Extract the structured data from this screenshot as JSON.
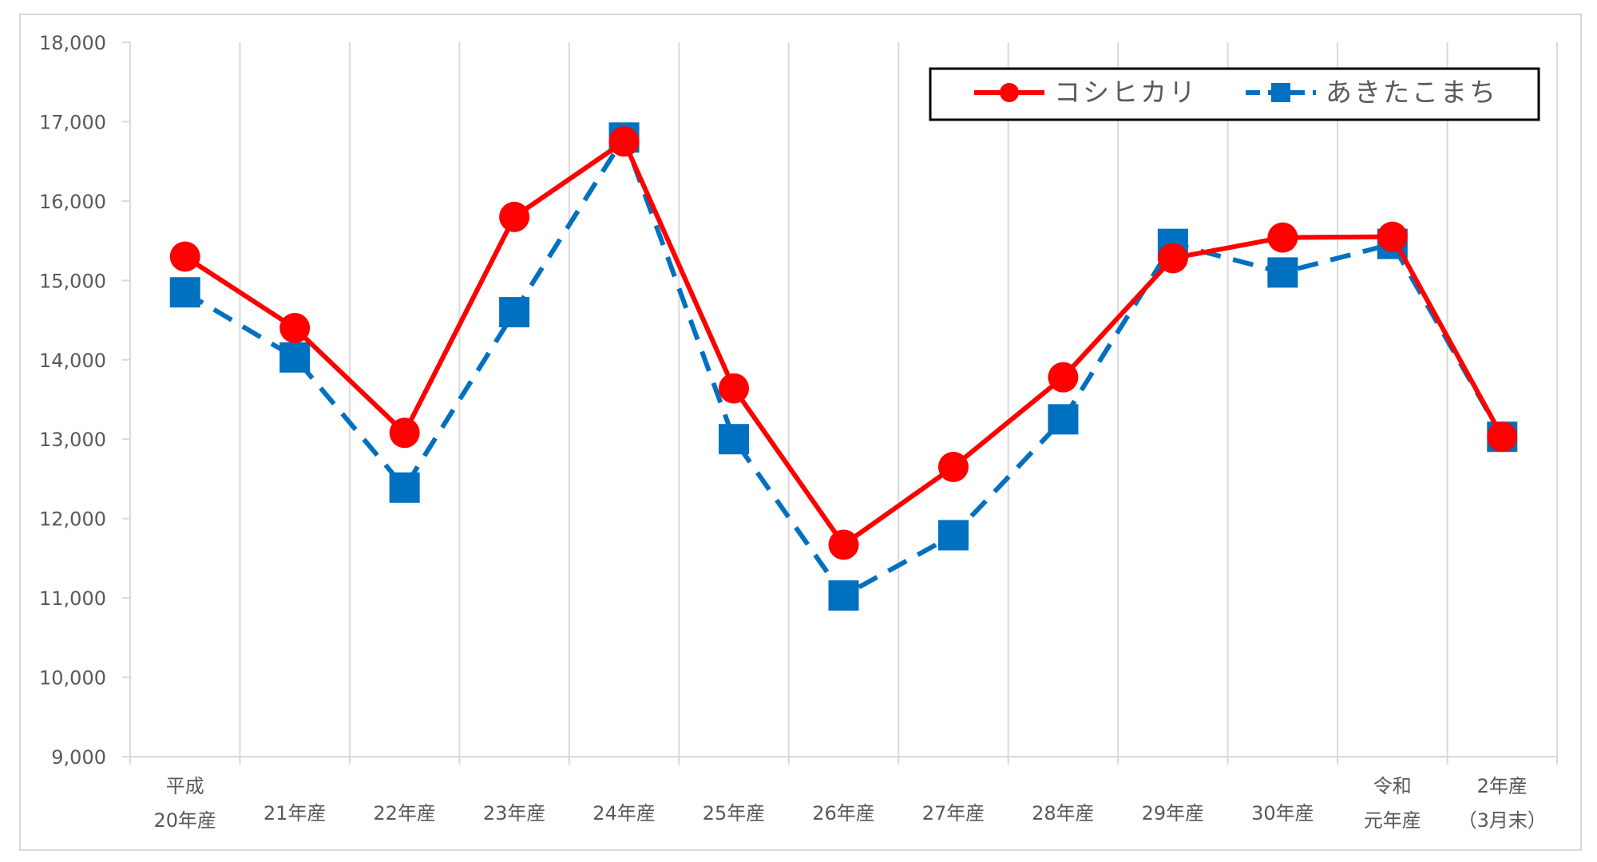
{
  "chart_data": {
    "type": "line",
    "title": "",
    "xlabel": "",
    "ylabel": "",
    "categories": [
      [
        "平成",
        "20年産"
      ],
      [
        "21年産"
      ],
      [
        "22年産"
      ],
      [
        "23年産"
      ],
      [
        "24年産"
      ],
      [
        "25年産"
      ],
      [
        "26年産"
      ],
      [
        "27年産"
      ],
      [
        "28年産"
      ],
      [
        "29年産"
      ],
      [
        "30年産"
      ],
      [
        "令和",
        "元年産"
      ],
      [
        "2年産",
        "（3月末）"
      ]
    ],
    "ylim": [
      9000,
      18000
    ],
    "yticks": [
      9000,
      10000,
      11000,
      12000,
      13000,
      14000,
      15000,
      16000,
      17000,
      18000
    ],
    "ytick_labels": [
      "9,000",
      "10,000",
      "11,000",
      "12,000",
      "13,000",
      "14,000",
      "15,000",
      "16,000",
      "17,000",
      "18,000"
    ],
    "grid": "vertical",
    "legend": "top-right",
    "series": [
      {
        "name": "コシヒカリ",
        "color": "#ff0000",
        "line_style": "solid",
        "marker": "circle",
        "values": [
          15300,
          14400,
          13080,
          15800,
          16750,
          13640,
          11670,
          12650,
          13780,
          15280,
          15540,
          15550,
          13030
        ]
      },
      {
        "name": "あきたこまち",
        "color": "#0070c0",
        "line_style": "dashed",
        "marker": "square",
        "values": [
          14850,
          14030,
          12390,
          14600,
          16800,
          13000,
          11030,
          11790,
          13250,
          15460,
          15100,
          15460,
          13030
        ]
      }
    ]
  }
}
